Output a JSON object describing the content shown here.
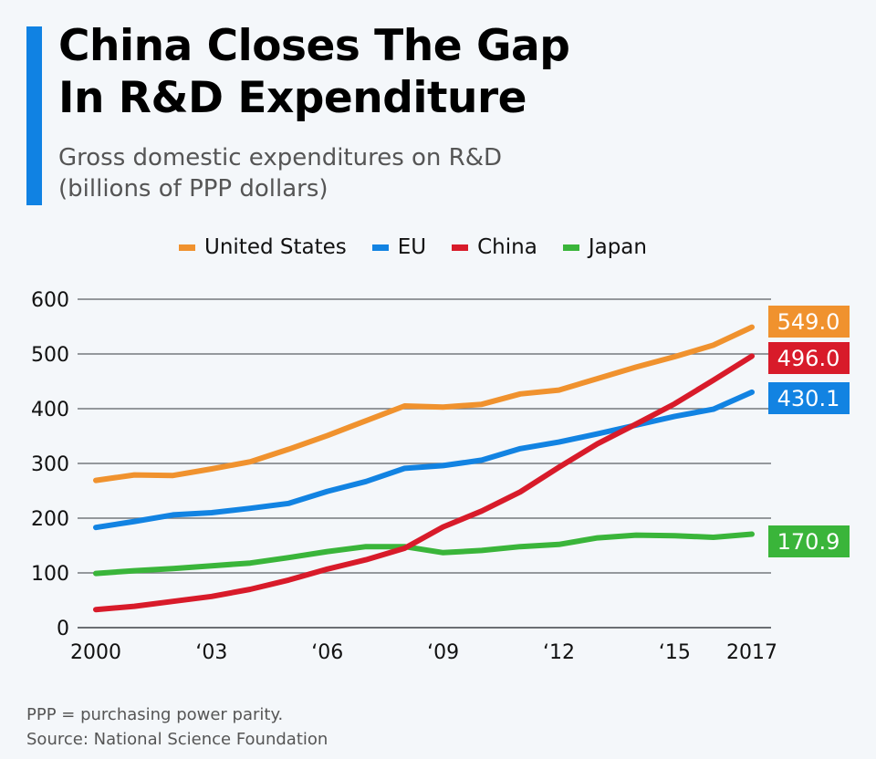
{
  "header": {
    "title_line1": "China Closes The Gap",
    "title_line2": "In R&D Expenditure",
    "subtitle_line1": "Gross domestic expenditures on R&D",
    "subtitle_line2": "(billions of PPP dollars)",
    "accent_color": "#1082e3"
  },
  "footer": {
    "note": "PPP = purchasing power parity.",
    "source": "Source: National Science Foundation"
  },
  "chart_data": {
    "type": "line",
    "title": "China Closes The Gap In R&D Expenditure",
    "subtitle": "Gross domestic expenditures on R&D (billions of PPP dollars)",
    "xlabel": "",
    "ylabel": "",
    "x": [
      2000,
      2001,
      2002,
      2003,
      2004,
      2005,
      2006,
      2007,
      2008,
      2009,
      2010,
      2011,
      2012,
      2013,
      2014,
      2015,
      2016,
      2017
    ],
    "x_tick_values": [
      2000,
      2003,
      2006,
      2009,
      2012,
      2015,
      2017
    ],
    "x_tick_labels": [
      "2000",
      "‘03",
      "‘06",
      "‘09",
      "‘12",
      "‘15",
      "2017"
    ],
    "ylim": [
      0,
      600
    ],
    "y_ticks": [
      0,
      100,
      200,
      300,
      400,
      500,
      600
    ],
    "y_tick_labels": [
      "0",
      "100",
      "200",
      "300",
      "400",
      "500",
      "600"
    ],
    "grid": true,
    "legend_position": "top",
    "series": [
      {
        "name": "United States",
        "color": "#f0922e",
        "values": [
          269,
          279,
          278,
          290,
          303,
          326,
          351,
          378,
          405,
          403,
          408,
          427,
          434,
          455,
          476,
          495,
          516,
          549
        ],
        "end_label": "549.0"
      },
      {
        "name": "EU",
        "color": "#1283e2",
        "values": [
          183,
          194,
          206,
          210,
          218,
          227,
          249,
          267,
          291,
          296,
          306,
          327,
          339,
          354,
          370,
          386,
          399,
          430.1
        ],
        "end_label": "430.1"
      },
      {
        "name": "China",
        "color": "#d81b2a",
        "values": [
          33,
          39,
          48,
          57,
          70,
          87,
          107,
          124,
          145,
          184,
          213,
          248,
          293,
          336,
          372,
          409,
          452,
          496
        ],
        "end_label": "496.0"
      },
      {
        "name": "Japan",
        "color": "#3ab53a",
        "values": [
          99,
          104,
          108,
          113,
          118,
          128,
          139,
          148,
          148,
          137,
          141,
          148,
          152,
          164,
          169,
          168,
          165,
          170.9
        ],
        "end_label": "170.9"
      }
    ]
  }
}
